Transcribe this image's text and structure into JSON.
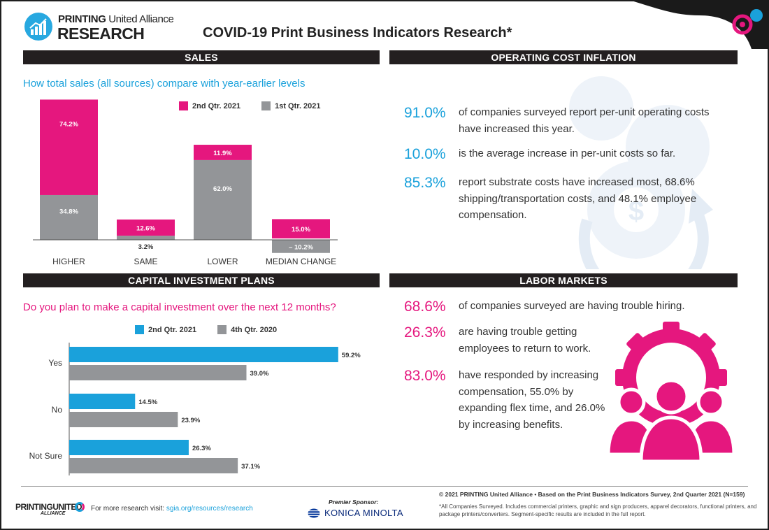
{
  "header": {
    "logo_line1_bold": "PRINTING",
    "logo_line1_light": "United Alliance",
    "logo_line2": "RESEARCH",
    "title": "COVID-19 Print Business Indicators Research*"
  },
  "sales": {
    "heading": "SALES",
    "question": "How total sales (all sources) compare with year-earlier levels",
    "legend": [
      "2nd Qtr. 2021",
      "1st Qtr. 2021"
    ]
  },
  "operating": {
    "heading": "OPERATING COST INFLATION",
    "stats": [
      {
        "value": "91.0%",
        "text": "of companies surveyed report per-unit operating costs have increased this year."
      },
      {
        "value": "10.0%",
        "text": "is the average increase in per-unit costs so far."
      },
      {
        "value": "85.3%",
        "text": "report substrate costs have increased most, 68.6% shipping/transportation costs, and 48.1% employee compensation."
      }
    ]
  },
  "capital": {
    "heading": "CAPITAL INVESTMENT PLANS",
    "question": "Do you plan to make a capital investment over the next 12 months?",
    "legend": [
      "2nd Qtr. 2021",
      "4th Qtr. 2020"
    ]
  },
  "labor": {
    "heading": "LABOR MARKETS",
    "stats": [
      {
        "value": "68.6%",
        "text": "of companies surveyed are having trouble hiring."
      },
      {
        "value": "26.3%",
        "text": "are having trouble getting employees to return to work."
      },
      {
        "value": "83.0%",
        "text": "have responded by increasing compensation, 55.0% by expanding flex time, and 26.0% by increasing benefits."
      }
    ]
  },
  "footer": {
    "logo_text": "PRINTINGUNITED",
    "logo_sub": "ALLIANCE",
    "visit_text": "For more research visit:",
    "visit_link": "sgia.org/resources/research",
    "sponsor_label": "Premier Sponsor:",
    "sponsor_name": "KONICA MINOLTA",
    "copyright": "© 2021 PRINTING United Alliance • Based on the Print Business Indicators Survey, 2nd Quarter 2021 (N=159)",
    "note": "*All Companies Surveyed. Includes commercial printers, graphic and sign producers, apparel decorators, functional printers, and package printers/converters. Segment-specific results are included in the full report."
  },
  "colors": {
    "pink": "#e5177e",
    "blue": "#1aa1db",
    "gray": "#939598",
    "dark": "#231f20"
  },
  "chart_data": [
    {
      "type": "bar",
      "title": "How total sales (all sources) compare with year-earlier levels",
      "categories": [
        "HIGHER",
        "SAME",
        "LOWER",
        "MEDIAN CHANGE"
      ],
      "series": [
        {
          "name": "2nd Qtr. 2021",
          "values": [
            74.2,
            12.6,
            11.9,
            15.0
          ],
          "labels": [
            "74.2%",
            "12.6%",
            "11.9%",
            "15.0%"
          ]
        },
        {
          "name": "1st Qtr. 2021",
          "values": [
            34.8,
            3.2,
            62.0,
            -10.2
          ],
          "labels": [
            "34.8%",
            "3.2%",
            "62.0%",
            "– 10.2%"
          ]
        }
      ],
      "xlabel": "",
      "ylabel": "",
      "ylim": [
        -15,
        115
      ]
    },
    {
      "type": "bar",
      "orientation": "horizontal",
      "title": "Do you plan to make a capital investment over the next 12 months?",
      "categories": [
        "Yes",
        "No",
        "Not Sure"
      ],
      "series": [
        {
          "name": "2nd Qtr. 2021",
          "values": [
            59.2,
            14.5,
            26.3
          ],
          "labels": [
            "59.2%",
            "14.5%",
            "26.3%"
          ]
        },
        {
          "name": "4th Qtr. 2020",
          "values": [
            39.0,
            23.9,
            37.1
          ],
          "labels": [
            "39.0%",
            "23.9%",
            "37.1%"
          ]
        }
      ],
      "xlabel": "",
      "ylabel": "",
      "xlim": [
        0,
        75
      ]
    }
  ]
}
